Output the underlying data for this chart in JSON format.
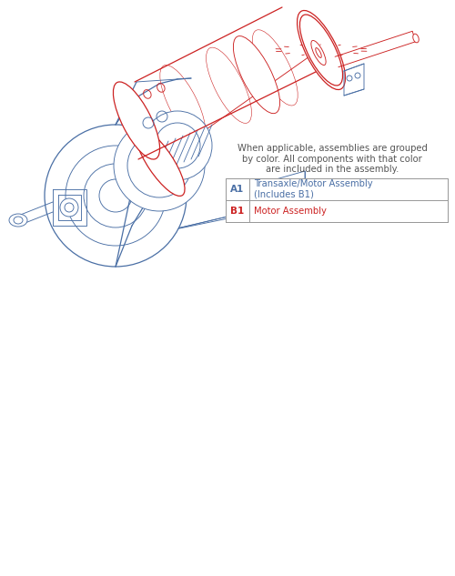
{
  "background_color": "#ffffff",
  "blue_color": "#4a6fa5",
  "red_color": "#cc2222",
  "gray_text_color": "#555555",
  "table_border_color": "#999999",
  "description_text": "When applicable, assemblies are grouped\nby color. All components with that color\nare included in the assembly.",
  "table_rows": [
    {
      "label": "A1",
      "label_color": "#4a6fa5",
      "text": "Transaxle/Motor Assembly\n(Includes B1)",
      "text_color": "#4a6fa5"
    },
    {
      "label": "B1",
      "label_color": "#cc2222",
      "text": "Motor Assembly",
      "text_color": "#cc2222"
    }
  ],
  "fig_width": 5.0,
  "fig_height": 6.33
}
